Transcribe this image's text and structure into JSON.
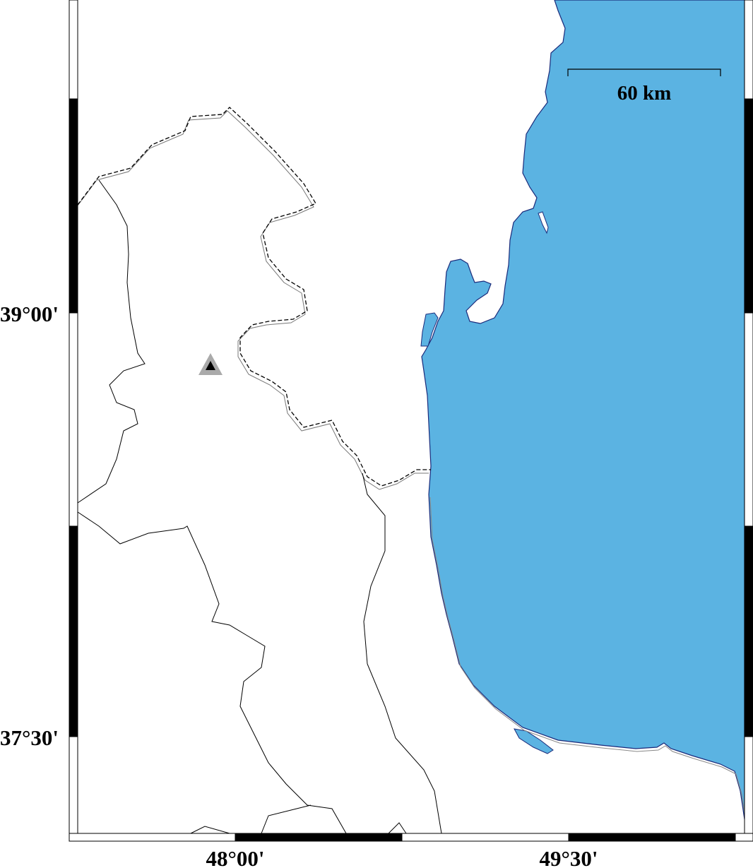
{
  "map": {
    "projection": "mercator",
    "frame_style": "fancy",
    "colors": {
      "water": "#5bb3e2",
      "land": "#ffffff",
      "coastline": "#1a2a7a",
      "border": "#000000",
      "marker_outer": "#aaaaaa",
      "marker_inner": "#000000"
    },
    "lon_ticks": [
      {
        "value": 48.0,
        "label": "48°00'"
      },
      {
        "value": 49.5,
        "label": "49°30'"
      }
    ],
    "lat_ticks": [
      {
        "value": 39.0,
        "label": "39°00'"
      },
      {
        "value": 37.5,
        "label": "37°30'"
      }
    ],
    "scale_bar": {
      "label": "60 km"
    },
    "marker": {
      "shape": "triangle"
    }
  }
}
